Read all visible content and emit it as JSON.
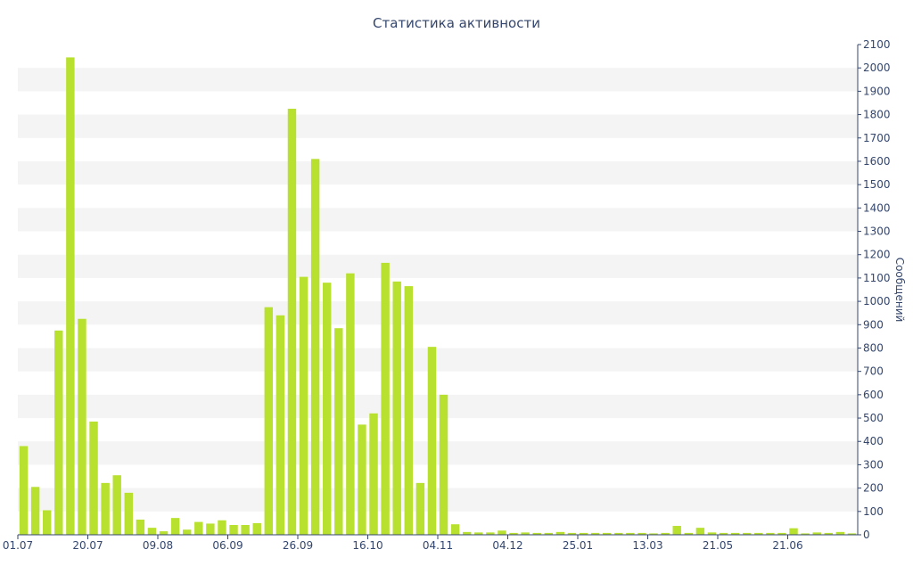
{
  "chart_data": {
    "type": "bar",
    "title": "Статистика активности",
    "xlabel": "",
    "ylabel": "Сообщений",
    "ylim": [
      0,
      2100
    ],
    "yticks": [
      0,
      100,
      200,
      300,
      400,
      500,
      600,
      700,
      800,
      900,
      1000,
      1100,
      1200,
      1300,
      1400,
      1500,
      1600,
      1700,
      1800,
      1900,
      2000,
      2100
    ],
    "y_axis_side": "right",
    "grid": "alternating horizontal bands",
    "x_tick_labels": [
      {
        "label": "01.07",
        "index": 0
      },
      {
        "label": "20.07",
        "index": 6
      },
      {
        "label": "09.08",
        "index": 12
      },
      {
        "label": "06.09",
        "index": 18
      },
      {
        "label": "26.09",
        "index": 24
      },
      {
        "label": "16.10",
        "index": 30
      },
      {
        "label": "04.11",
        "index": 36
      },
      {
        "label": "04.12",
        "index": 42
      },
      {
        "label": "25.01",
        "index": 48
      },
      {
        "label": "13.03",
        "index": 54
      },
      {
        "label": "21.05",
        "index": 60
      },
      {
        "label": "21.06",
        "index": 66
      }
    ],
    "values": [
      380,
      205,
      105,
      875,
      2045,
      925,
      485,
      222,
      255,
      180,
      65,
      30,
      15,
      72,
      22,
      55,
      48,
      62,
      42,
      42,
      50,
      975,
      940,
      1825,
      1105,
      1610,
      1080,
      885,
      1120,
      472,
      520,
      1165,
      1085,
      1065,
      222,
      805,
      600,
      45,
      12,
      10,
      10,
      18,
      8,
      10,
      8,
      8,
      12,
      8,
      8,
      8,
      8,
      8,
      8,
      8,
      6,
      8,
      38,
      8,
      30,
      10,
      8,
      8,
      8,
      8,
      8,
      8,
      28,
      6,
      10,
      8,
      12,
      6
    ],
    "bar_color": "#b8e02e"
  }
}
